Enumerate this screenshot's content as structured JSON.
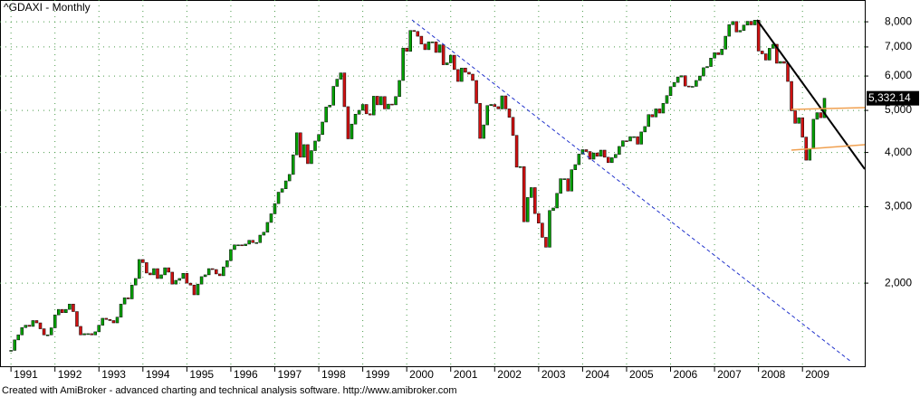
{
  "chart_data": {
    "type": "candlestick",
    "title": "^GDAXI - Monthly",
    "footer": "Created with AmiBroker - advanced charting and technical analysis software. http://www.amibroker.com",
    "log_scale": true,
    "grid": true,
    "up_color": "#00a000",
    "down_color": "#d01010",
    "xlim": [
      "1990-10",
      "2010-06"
    ],
    "xticks": [
      1991,
      1992,
      1993,
      1994,
      1995,
      1996,
      1997,
      1998,
      1999,
      2000,
      2001,
      2002,
      2003,
      2004,
      2005,
      2006,
      2007,
      2008,
      2009
    ],
    "ylim": [
      1287,
      8980
    ],
    "yticks": [
      {
        "value": 2000,
        "label": "2,000"
      },
      {
        "value": 3000,
        "label": "3,000"
      },
      {
        "value": 4000,
        "label": "4,000"
      },
      {
        "value": 5000,
        "label": "5,000"
      },
      {
        "value": 6000,
        "label": "6,000"
      },
      {
        "value": 7000,
        "label": "7,000"
      },
      {
        "value": 8000,
        "label": "8,000"
      }
    ],
    "last_label": "5,332.14",
    "x": [
      "1991-01",
      "1991-02",
      "1991-03",
      "1991-04",
      "1991-05",
      "1991-06",
      "1991-07",
      "1991-08",
      "1991-09",
      "1991-10",
      "1991-11",
      "1991-12",
      "1992-01",
      "1992-02",
      "1992-03",
      "1992-04",
      "1992-05",
      "1992-06",
      "1992-07",
      "1992-08",
      "1992-09",
      "1992-10",
      "1992-11",
      "1992-12",
      "1993-01",
      "1993-02",
      "1993-03",
      "1993-04",
      "1993-05",
      "1993-06",
      "1993-07",
      "1993-08",
      "1993-09",
      "1993-10",
      "1993-11",
      "1993-12",
      "1994-01",
      "1994-02",
      "1994-03",
      "1994-04",
      "1994-05",
      "1994-06",
      "1994-07",
      "1994-08",
      "1994-09",
      "1994-10",
      "1994-11",
      "1994-12",
      "1995-01",
      "1995-02",
      "1995-03",
      "1995-04",
      "1995-05",
      "1995-06",
      "1995-07",
      "1995-08",
      "1995-09",
      "1995-10",
      "1995-11",
      "1995-12",
      "1996-01",
      "1996-02",
      "1996-03",
      "1996-04",
      "1996-05",
      "1996-06",
      "1996-07",
      "1996-08",
      "1996-09",
      "1996-10",
      "1996-11",
      "1996-12",
      "1997-01",
      "1997-02",
      "1997-03",
      "1997-04",
      "1997-05",
      "1997-06",
      "1997-07",
      "1997-08",
      "1997-09",
      "1997-10",
      "1997-11",
      "1997-12",
      "1998-01",
      "1998-02",
      "1998-03",
      "1998-04",
      "1998-05",
      "1998-06",
      "1998-07",
      "1998-08",
      "1998-09",
      "1998-10",
      "1998-11",
      "1998-12",
      "1999-01",
      "1999-02",
      "1999-03",
      "1999-04",
      "1999-05",
      "1999-06",
      "1999-07",
      "1999-08",
      "1999-09",
      "1999-10",
      "1999-11",
      "1999-12",
      "2000-01",
      "2000-02",
      "2000-03",
      "2000-04",
      "2000-05",
      "2000-06",
      "2000-07",
      "2000-08",
      "2000-09",
      "2000-10",
      "2000-11",
      "2000-12",
      "2001-01",
      "2001-02",
      "2001-03",
      "2001-04",
      "2001-05",
      "2001-06",
      "2001-07",
      "2001-08",
      "2001-09",
      "2001-10",
      "2001-11",
      "2001-12",
      "2002-01",
      "2002-02",
      "2002-03",
      "2002-04",
      "2002-05",
      "2002-06",
      "2002-07",
      "2002-08",
      "2002-09",
      "2002-10",
      "2002-11",
      "2002-12",
      "2003-01",
      "2003-02",
      "2003-03",
      "2003-04",
      "2003-05",
      "2003-06",
      "2003-07",
      "2003-08",
      "2003-09",
      "2003-10",
      "2003-11",
      "2003-12",
      "2004-01",
      "2004-02",
      "2004-03",
      "2004-04",
      "2004-05",
      "2004-06",
      "2004-07",
      "2004-08",
      "2004-09",
      "2004-10",
      "2004-11",
      "2004-12",
      "2005-01",
      "2005-02",
      "2005-03",
      "2005-04",
      "2005-05",
      "2005-06",
      "2005-07",
      "2005-08",
      "2005-09",
      "2005-10",
      "2005-11",
      "2005-12",
      "2006-01",
      "2006-02",
      "2006-03",
      "2006-04",
      "2006-05",
      "2006-06",
      "2006-07",
      "2006-08",
      "2006-09",
      "2006-10",
      "2006-11",
      "2006-12",
      "2007-01",
      "2007-02",
      "2007-03",
      "2007-04",
      "2007-05",
      "2007-06",
      "2007-07",
      "2007-08",
      "2007-09",
      "2007-10",
      "2007-11",
      "2007-12",
      "2008-01",
      "2008-02",
      "2008-03",
      "2008-04",
      "2008-05",
      "2008-06",
      "2008-07",
      "2008-08",
      "2008-09",
      "2008-10",
      "2008-11",
      "2008-12",
      "2009-01",
      "2009-02",
      "2009-03",
      "2009-04",
      "2009-05",
      "2009-06",
      "2009-07"
    ],
    "values": [
      1400,
      1480,
      1520,
      1580,
      1600,
      1590,
      1640,
      1620,
      1570,
      1520,
      1520,
      1578,
      1690,
      1740,
      1710,
      1740,
      1790,
      1720,
      1590,
      1520,
      1530,
      1530,
      1520,
      1545,
      1600,
      1660,
      1650,
      1640,
      1620,
      1670,
      1790,
      1850,
      1840,
      1980,
      2050,
      2267,
      2230,
      2110,
      2090,
      2160,
      2050,
      2090,
      2170,
      2120,
      1990,
      2030,
      2050,
      2107,
      2000,
      1980,
      1880,
      1990,
      2070,
      2090,
      2160,
      2150,
      2100,
      2080,
      2180,
      2254,
      2390,
      2450,
      2450,
      2440,
      2460,
      2510,
      2480,
      2480,
      2580,
      2620,
      2760,
      2889,
      3050,
      3240,
      3300,
      3440,
      3560,
      3950,
      4440,
      3900,
      4170,
      3770,
      4040,
      4250,
      4400,
      4700,
      5090,
      5140,
      5680,
      5900,
      6100,
      5100,
      4300,
      4650,
      4900,
      5002,
      5160,
      4910,
      4880,
      5390,
      5150,
      5380,
      5040,
      5170,
      5150,
      5380,
      5860,
      6958,
      6840,
      7640,
      7600,
      7410,
      7110,
      6900,
      7190,
      7190,
      6800,
      7080,
      6370,
      6434,
      6700,
      6210,
      5830,
      6260,
      6120,
      6060,
      5860,
      5190,
      4310,
      4630,
      5130,
      5160,
      5100,
      5040,
      5400,
      5040,
      4820,
      4380,
      3700,
      3710,
      2770,
      3150,
      3320,
      2893,
      2750,
      2550,
      2420,
      2940,
      2980,
      3220,
      3480,
      3480,
      3260,
      3650,
      3750,
      3965,
      4060,
      4020,
      3860,
      3990,
      3920,
      4050,
      3900,
      3790,
      3890,
      3960,
      4130,
      4256,
      4250,
      4350,
      4350,
      4180,
      4460,
      4590,
      4890,
      4830,
      5040,
      4930,
      5190,
      5408,
      5670,
      5800,
      5970,
      6010,
      5690,
      5680,
      5680,
      5860,
      6000,
      6270,
      6310,
      6597,
      6790,
      6720,
      6920,
      7410,
      7880,
      8010,
      7580,
      7640,
      7860,
      8020,
      7870,
      8067,
      6850,
      6750,
      6530,
      6950,
      7100,
      6420,
      6480,
      6420,
      5830,
      4990,
      4670,
      4810,
      4340,
      3840,
      4080,
      4770,
      4940,
      4810,
      5332.14
    ]
  }
}
